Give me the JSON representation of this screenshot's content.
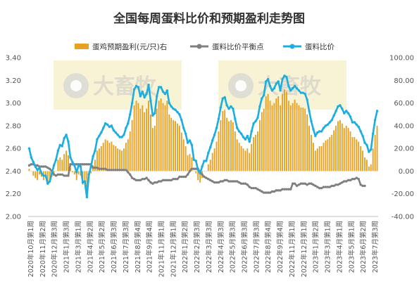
{
  "chart_data": {
    "type": "bar+line",
    "title": "全国每周蛋料比价和预期盈利走势图",
    "legend_position": "top",
    "grid": false,
    "series": [
      {
        "name": "蛋鸡预期盈利(元/只)右",
        "type": "bar",
        "axis": "right",
        "color": "#E8A020",
        "values": [
          2,
          0,
          -4,
          -6,
          -8,
          -3,
          -5,
          -8,
          -6,
          -10,
          -9,
          -5,
          -3,
          0,
          10,
          12,
          10,
          15,
          18,
          14,
          3,
          -1,
          -3,
          -8,
          -3,
          -4,
          -12,
          -8,
          -15,
          -6,
          -2,
          5,
          10,
          18,
          20,
          22,
          25,
          28,
          27,
          25,
          26,
          23,
          22,
          20,
          19,
          18,
          20,
          25,
          28,
          35,
          45,
          58,
          62,
          60,
          55,
          58,
          52,
          55,
          62,
          50,
          38,
          40,
          55,
          62,
          64,
          60,
          58,
          62,
          50,
          47,
          45,
          44,
          42,
          40,
          34,
          28,
          22,
          14,
          15,
          12,
          0,
          -2,
          -8,
          -10,
          -6,
          0,
          0,
          6,
          10,
          16,
          20,
          26,
          35,
          45,
          53,
          54,
          47,
          44,
          45,
          43,
          35,
          28,
          25,
          22,
          20,
          18,
          20,
          16,
          24,
          30,
          32,
          35,
          45,
          52,
          55,
          66,
          68,
          62,
          58,
          60,
          64,
          66,
          58,
          68,
          72,
          70,
          62,
          58,
          60,
          63,
          60,
          58,
          56,
          56,
          55,
          50,
          40,
          32,
          25,
          18,
          20,
          22,
          22,
          25,
          27,
          28,
          30,
          32,
          36,
          40,
          44,
          45,
          42,
          38,
          40,
          38,
          35,
          30,
          30,
          28,
          26,
          22,
          18,
          12,
          10,
          4,
          6,
          20,
          32,
          40
        ]
      },
      {
        "name": "蛋料比价平衡点",
        "type": "line",
        "axis": "left",
        "color": "#808080",
        "values": [
          2.45,
          2.46,
          2.46,
          2.45,
          2.45,
          2.44,
          2.44,
          2.44,
          2.44,
          2.43,
          2.42,
          2.4,
          2.37,
          2.36,
          2.37,
          2.37,
          2.37,
          2.36,
          2.36,
          2.36,
          2.46,
          2.46,
          2.46,
          2.46,
          2.46,
          2.46,
          2.46,
          2.46,
          2.46,
          2.46,
          2.46,
          2.43,
          2.43,
          2.43,
          2.42,
          2.42,
          2.42,
          2.42,
          2.41,
          2.41,
          2.41,
          2.41,
          2.41,
          2.41,
          2.41,
          2.41,
          2.41,
          2.41,
          2.39,
          2.37,
          2.34,
          2.33,
          2.32,
          2.32,
          2.32,
          2.33,
          2.33,
          2.34,
          2.32,
          2.3,
          2.29,
          2.3,
          2.3,
          2.31,
          2.31,
          2.32,
          2.32,
          2.32,
          2.32,
          2.32,
          2.33,
          2.33,
          2.33,
          2.35,
          2.35,
          2.35,
          2.35,
          2.37,
          2.4,
          2.42,
          2.42,
          2.42,
          2.42,
          2.39,
          2.37,
          2.35,
          2.34,
          2.33,
          2.32,
          2.31,
          2.3,
          2.3,
          2.3,
          2.31,
          2.31,
          2.32,
          2.32,
          2.31,
          2.31,
          2.31,
          2.31,
          2.31,
          2.3,
          2.29,
          2.29,
          2.29,
          2.28,
          2.26,
          2.25,
          2.25,
          2.25,
          2.24,
          2.23,
          2.22,
          2.21,
          2.21,
          2.21,
          2.21,
          2.22,
          2.22,
          2.23,
          2.23,
          2.23,
          2.24,
          2.24,
          2.24,
          2.24,
          2.24,
          2.29,
          2.29,
          2.27,
          2.28,
          2.29,
          2.29,
          2.29,
          2.28,
          2.29,
          2.29,
          2.28,
          2.27,
          2.26,
          2.25,
          2.25,
          2.26,
          2.26,
          2.26,
          2.26,
          2.27,
          2.27,
          2.28,
          2.28,
          2.29,
          2.3,
          2.31,
          2.31,
          2.32,
          2.32,
          2.33,
          2.33,
          2.34,
          2.33,
          2.28,
          2.27,
          2.27
        ]
      },
      {
        "name": "蛋料比价",
        "type": "line",
        "axis": "left",
        "color": "#1CAEE0",
        "values": [
          2.6,
          2.52,
          2.48,
          2.44,
          2.41,
          2.43,
          2.38,
          2.36,
          2.36,
          2.29,
          2.31,
          2.38,
          2.45,
          2.5,
          2.58,
          2.63,
          2.62,
          2.69,
          2.72,
          2.66,
          2.52,
          2.48,
          2.45,
          2.39,
          2.45,
          2.44,
          2.3,
          2.31,
          2.17,
          2.37,
          2.44,
          2.53,
          2.58,
          2.68,
          2.71,
          2.74,
          2.78,
          2.82,
          2.81,
          2.79,
          2.8,
          2.76,
          2.74,
          2.72,
          2.7,
          2.7,
          2.72,
          2.78,
          2.82,
          2.9,
          3.0,
          3.12,
          3.15,
          3.14,
          3.06,
          3.1,
          3.05,
          3.08,
          3.16,
          3.02,
          2.89,
          2.91,
          3.06,
          3.14,
          3.14,
          3.1,
          3.08,
          3.11,
          3.0,
          2.97,
          2.95,
          2.94,
          2.92,
          2.9,
          2.85,
          2.78,
          2.73,
          2.65,
          2.67,
          2.63,
          2.5,
          2.49,
          2.41,
          2.38,
          2.44,
          2.49,
          2.49,
          2.56,
          2.61,
          2.67,
          2.72,
          2.78,
          2.86,
          2.96,
          3.04,
          3.05,
          2.98,
          2.95,
          2.97,
          2.95,
          2.86,
          2.78,
          2.75,
          2.73,
          2.7,
          2.68,
          2.71,
          2.66,
          2.75,
          2.82,
          2.84,
          2.87,
          2.97,
          3.04,
          3.07,
          3.19,
          3.21,
          3.15,
          3.11,
          3.13,
          3.17,
          3.19,
          3.11,
          3.21,
          3.24,
          3.23,
          3.15,
          3.11,
          3.13,
          3.15,
          3.13,
          3.11,
          3.09,
          3.09,
          3.08,
          3.03,
          2.93,
          2.84,
          2.77,
          2.71,
          2.74,
          2.75,
          2.75,
          2.78,
          2.8,
          2.81,
          2.83,
          2.85,
          2.89,
          2.93,
          2.97,
          2.98,
          2.95,
          2.91,
          2.93,
          2.91,
          2.88,
          2.83,
          2.83,
          2.81,
          2.79,
          2.75,
          2.71,
          2.65,
          2.63,
          2.57,
          2.59,
          2.73,
          2.85,
          2.93
        ]
      }
    ],
    "x_tick_labels": [
      "2020年10月第1周",
      "2020年11月第2周",
      "2020年12月第3周",
      "2021年1月第3周",
      "2021年3月第1周",
      "2021年4月第2周",
      "2021年5月第2周",
      "2021年6月第3周",
      "2021年7月第3周",
      "2021年8月第4周",
      "2021年9月第4周",
      "2021年11月第1周",
      "2021年12月第1周",
      "2022年1月第2周",
      "2022年2月第3周",
      "2022年3月第3周",
      "2022年4月第3周",
      "2022年5月第3周",
      "2022年6月第3周",
      "2022年7月第3周",
      "2022年8月第4周",
      "2022年9月第4周",
      "2022年11月第1周",
      "2022年12月第1周",
      "2023年1月第2周",
      "2023年3月第1周",
      "2023年4月第1周",
      "2023年5月第1周",
      "2023年6月第2周",
      "2023年7月第3周"
    ],
    "y_left": {
      "min": 2.0,
      "max": 3.4,
      "step": 0.2,
      "ticks": [
        "2.00",
        "2.20",
        "2.40",
        "2.60",
        "2.80",
        "3.00",
        "3.20",
        "3.40"
      ]
    },
    "y_right": {
      "min": -40,
      "max": 100,
      "step": 20,
      "ticks": [
        "-40.00",
        "-20.00",
        "0.00",
        "20.00",
        "40.00",
        "60.00",
        "80.00",
        "100.00"
      ]
    }
  },
  "watermark": {
    "text": "大畜牧"
  }
}
